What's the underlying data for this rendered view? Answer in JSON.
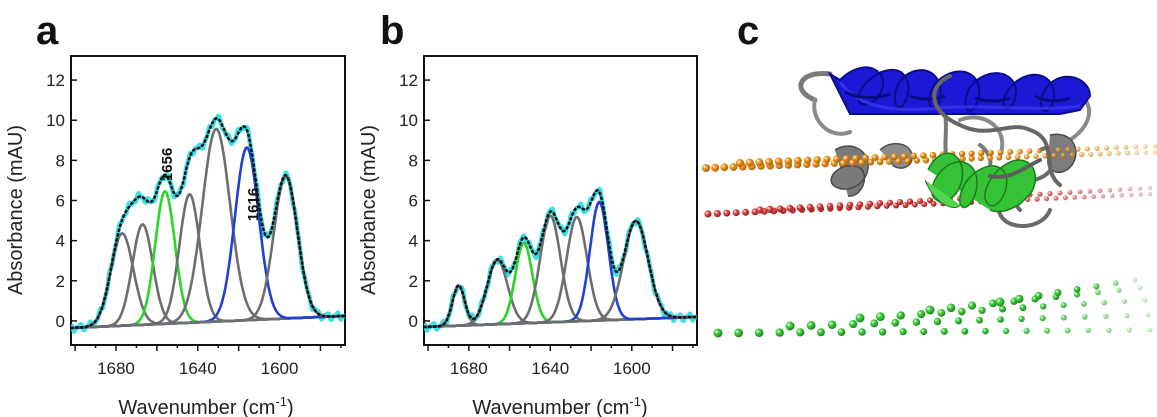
{
  "panels": [
    {
      "letter": "a"
    },
    {
      "letter": "b"
    },
    {
      "letter": "c"
    }
  ],
  "colors": {
    "cyan": "#35e2ea",
    "gray": "#6e6e6e",
    "green": "#27d627",
    "blue": "#1f40d6",
    "dotted": "#111111",
    "orange": "#e88a12",
    "red": "#c73434",
    "helix_blue": "#1a1ad6"
  },
  "chart_data": [
    {
      "panel": "a",
      "type": "line",
      "xlabel": "Wavenumber (cm",
      "xlabel_sup": "-1",
      "xlabel_close": ")",
      "ylabel": "Absorbance (mAU)",
      "xlim": [
        1702,
        1568
      ],
      "ylim": [
        -1.2,
        13.2
      ],
      "xticks": [
        1680,
        1640,
        1600
      ],
      "yticks": [
        0,
        2,
        4,
        6,
        8,
        10,
        12
      ],
      "annotations": [
        {
          "text": "1656",
          "x": 1655,
          "y": 7.8
        },
        {
          "text": "1616",
          "x": 1613,
          "y": 5.8
        }
      ],
      "bands": [
        {
          "center": 1677,
          "height": 4.6,
          "width": 5.5,
          "color": "gray"
        },
        {
          "center": 1667,
          "height": 5.0,
          "width": 5.0,
          "color": "gray"
        },
        {
          "center": 1656,
          "height": 6.6,
          "width": 4.8,
          "color": "green"
        },
        {
          "center": 1644,
          "height": 6.4,
          "width": 5.0,
          "color": "gray"
        },
        {
          "center": 1631,
          "height": 9.6,
          "width": 6.8,
          "color": "gray"
        },
        {
          "center": 1616,
          "height": 8.6,
          "width": 5.8,
          "color": "blue"
        },
        {
          "center": 1597,
          "height": 7.1,
          "width": 5.8,
          "color": "gray"
        }
      ],
      "baseline": {
        "start": -0.35,
        "end": 0.25
      }
    },
    {
      "panel": "b",
      "type": "line",
      "xlabel": "Wavenumber (cm",
      "xlabel_sup": "-1",
      "xlabel_close": ")",
      "ylabel": "Absorbance (mAU)",
      "xlim": [
        1702,
        1568
      ],
      "ylim": [
        -1.2,
        13.2
      ],
      "xticks": [
        1680,
        1640,
        1600
      ],
      "yticks": [
        0,
        2,
        4,
        6,
        8,
        10,
        12
      ],
      "annotations": [],
      "bands": [
        {
          "center": 1685,
          "height": 2.0,
          "width": 3.0,
          "color": "gray"
        },
        {
          "center": 1666,
          "height": 3.2,
          "width": 5.0,
          "color": "gray"
        },
        {
          "center": 1653,
          "height": 4.0,
          "width": 4.2,
          "color": "green"
        },
        {
          "center": 1640,
          "height": 5.3,
          "width": 5.0,
          "color": "gray"
        },
        {
          "center": 1627,
          "height": 5.2,
          "width": 5.0,
          "color": "gray"
        },
        {
          "center": 1616,
          "height": 5.9,
          "width": 4.5,
          "color": "blue"
        },
        {
          "center": 1598,
          "height": 4.9,
          "width": 6.0,
          "color": "gray"
        }
      ],
      "baseline": {
        "start": -0.3,
        "end": 0.2
      }
    }
  ]
}
